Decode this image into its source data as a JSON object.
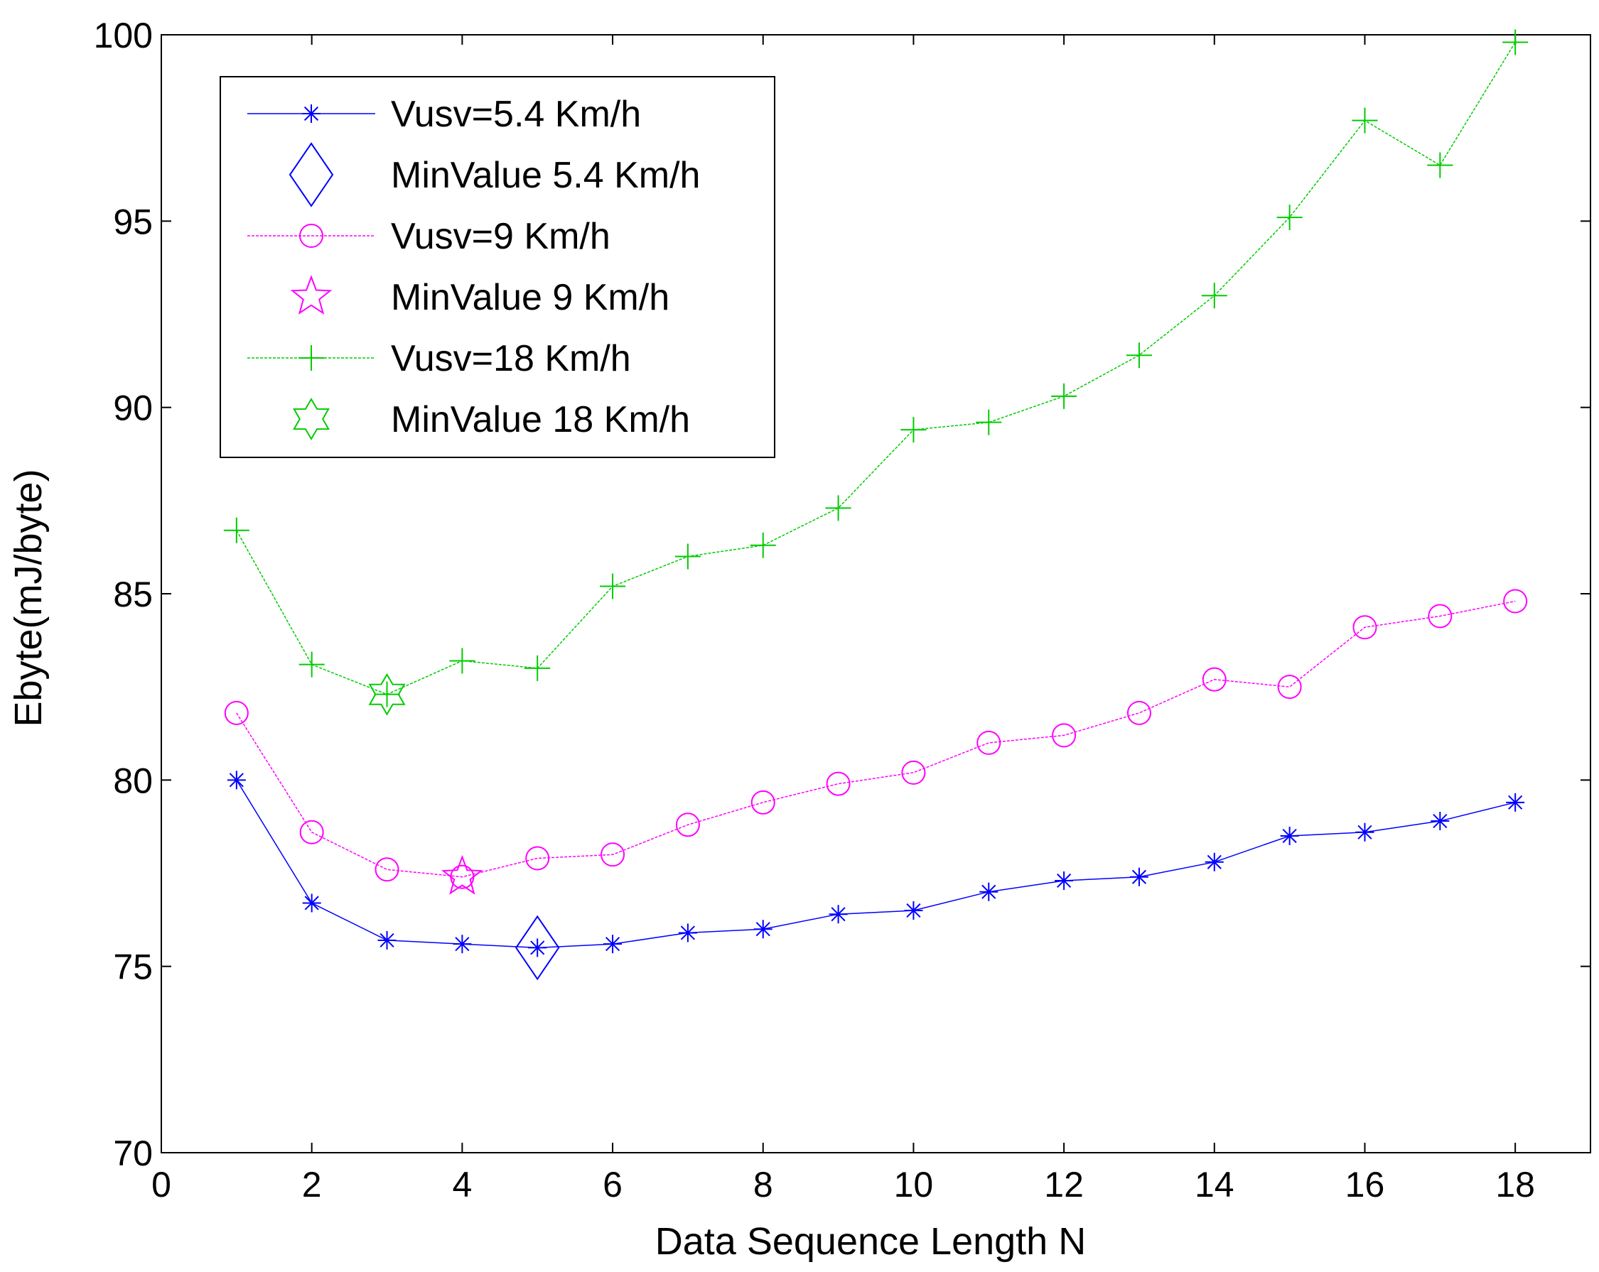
{
  "chart_data": {
    "type": "line",
    "title": "",
    "xlabel": "Data Sequence Length N",
    "ylabel": "Ebyte(mJ/byte)",
    "xlim": [
      0,
      19
    ],
    "ylim": [
      70,
      100
    ],
    "x_ticks": [
      0,
      2,
      4,
      6,
      8,
      10,
      12,
      14,
      16,
      18
    ],
    "y_ticks": [
      70,
      75,
      80,
      85,
      90,
      95,
      100
    ],
    "x_tick_labels": [
      "0",
      "2",
      "4",
      "6",
      "8",
      "10",
      "12",
      "14",
      "16",
      "18"
    ],
    "y_tick_labels": [
      "70",
      "75",
      "80",
      "85",
      "90",
      "95",
      "100"
    ],
    "legend_position": "top-left",
    "x": [
      1,
      2,
      3,
      4,
      5,
      6,
      7,
      8,
      9,
      10,
      11,
      12,
      13,
      14,
      15,
      16,
      17,
      18
    ],
    "series": [
      {
        "name": "Vusv=5.4 Km/h",
        "color": "#0000ff",
        "marker": "asterisk",
        "values": [
          80.0,
          76.7,
          75.7,
          75.6,
          75.5,
          75.6,
          75.9,
          76.0,
          76.4,
          76.5,
          77.0,
          77.3,
          77.4,
          77.8,
          78.5,
          78.6,
          78.9,
          79.4
        ]
      },
      {
        "name": "MinValue 5.4 Km/h",
        "color": "#0000ff",
        "marker": "diamond",
        "points": [
          {
            "x": 5,
            "y": 75.5
          }
        ]
      },
      {
        "name": "Vusv=9 Km/h",
        "color": "#ff00ff",
        "marker": "circle",
        "values": [
          81.8,
          78.6,
          77.6,
          77.4,
          77.9,
          78.0,
          78.8,
          79.4,
          79.9,
          80.2,
          81.0,
          81.2,
          81.8,
          82.7,
          82.5,
          84.1,
          84.4,
          84.8
        ]
      },
      {
        "name": "MinValue 9 Km/h",
        "color": "#ff00ff",
        "marker": "star5",
        "points": [
          {
            "x": 4,
            "y": 77.4
          }
        ]
      },
      {
        "name": "Vusv=18 Km/h",
        "color": "#00cc00",
        "marker": "plus",
        "values": [
          86.7,
          83.1,
          82.3,
          83.2,
          83.0,
          85.2,
          86.0,
          86.3,
          87.3,
          89.4,
          89.6,
          90.3,
          91.4,
          93.0,
          95.1,
          97.7,
          96.5,
          99.8
        ]
      },
      {
        "name": "MinValue 18 Km/h",
        "color": "#00cc00",
        "marker": "star6",
        "points": [
          {
            "x": 3,
            "y": 82.3
          }
        ]
      }
    ]
  }
}
